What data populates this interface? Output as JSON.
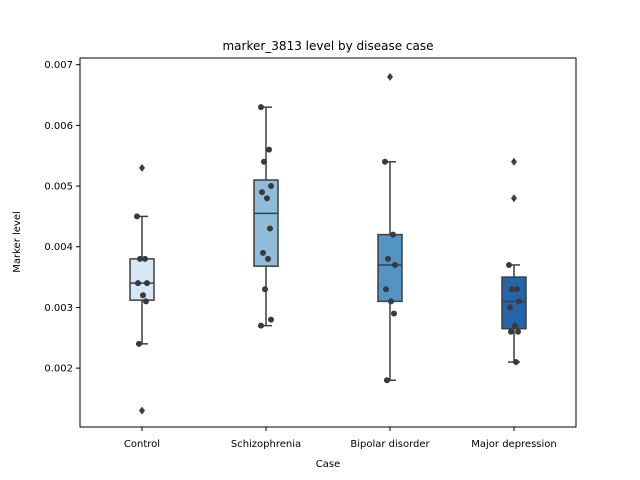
{
  "chart_data": {
    "type": "box",
    "title": "marker_3813 level by disease case",
    "xlabel": "Case",
    "ylabel": "Marker level",
    "ylim": [
      0.00103,
      0.00711
    ],
    "yticks": [
      0.002,
      0.003,
      0.004,
      0.005,
      0.006,
      0.007
    ],
    "ytick_labels": [
      "0.002",
      "0.003",
      "0.004",
      "0.005",
      "0.006",
      "0.007"
    ],
    "grid": false,
    "categories": [
      "Control",
      "Schizophrenia",
      "Bipolar disorder",
      "Major depression"
    ],
    "colors": [
      "#d6e6f4",
      "#8fbcd9",
      "#5494c5",
      "#2464a8"
    ],
    "boxes": [
      {
        "q1": 0.00312,
        "median": 0.0034,
        "q3": 0.0038,
        "whisker_low": 0.0024,
        "whisker_high": 0.0045,
        "outliers": [
          0.0053,
          0.0013
        ]
      },
      {
        "q1": 0.00368,
        "median": 0.00455,
        "q3": 0.0051,
        "whisker_low": 0.0027,
        "whisker_high": 0.0063,
        "outliers": []
      },
      {
        "q1": 0.0031,
        "median": 0.0037,
        "q3": 0.0042,
        "whisker_low": 0.0018,
        "whisker_high": 0.0054,
        "outliers": [
          0.0068
        ]
      },
      {
        "q1": 0.00265,
        "median": 0.0031,
        "q3": 0.0035,
        "whisker_low": 0.0021,
        "whisker_high": 0.0037,
        "outliers": [
          0.0054,
          0.0048
        ]
      }
    ],
    "points": [
      [
        0.0045,
        0.0038,
        0.0038,
        0.0034,
        0.0034,
        0.0032,
        0.0031,
        0.0024
      ],
      [
        0.0063,
        0.0056,
        0.0054,
        0.005,
        0.0049,
        0.0048,
        0.0043,
        0.0039,
        0.0038,
        0.0033,
        0.0028,
        0.0027
      ],
      [
        0.0054,
        0.0042,
        0.0038,
        0.0037,
        0.0033,
        0.0031,
        0.0029,
        0.0018
      ],
      [
        0.0037,
        0.0033,
        0.0033,
        0.0031,
        0.003,
        0.0027,
        0.0026,
        0.0026,
        0.0021
      ]
    ]
  }
}
